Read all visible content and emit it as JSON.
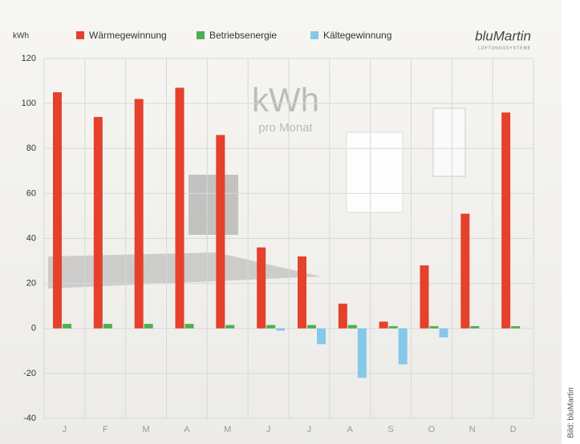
{
  "chart_data": {
    "type": "bar",
    "y_label": "kWh",
    "annotation": "kWh",
    "annotation_sub": "pro Monat",
    "logo": "bluMartin",
    "logo_sub": "LÜFTUNGSSYSTEME",
    "credit": "Bild: bluMartin",
    "categories": [
      "J",
      "F",
      "M",
      "A",
      "M",
      "J",
      "J",
      "A",
      "S",
      "O",
      "N",
      "D"
    ],
    "series": [
      {
        "name": "Wärmegewinnung",
        "color": "#e5412b",
        "values": [
          105,
          94,
          102,
          107,
          86,
          36,
          32,
          11,
          3,
          28,
          51,
          96
        ]
      },
      {
        "name": "Betriebsenergie",
        "color": "#4caf50",
        "values": [
          2,
          2,
          2,
          2,
          1.5,
          1.5,
          1.5,
          1.5,
          1,
          1,
          1,
          1
        ]
      },
      {
        "name": "Kältegewinnung",
        "color": "#86c8ea",
        "values": [
          null,
          null,
          null,
          null,
          null,
          -1,
          -7,
          -22,
          -16,
          -4,
          null,
          null
        ]
      }
    ],
    "ylim": [
      -40,
      120
    ],
    "yticks": [
      -40,
      -20,
      0,
      20,
      40,
      60,
      80,
      100,
      120
    ],
    "grid": true,
    "legend": "top"
  }
}
